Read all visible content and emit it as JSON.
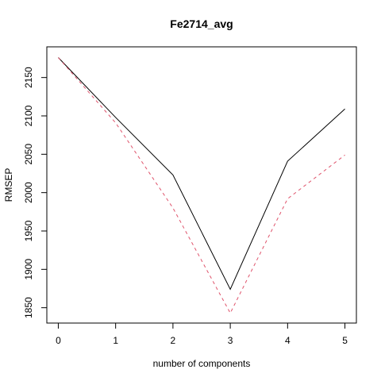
{
  "chart_data": {
    "type": "line",
    "title": "Fe2714_avg",
    "xlabel": "number of components",
    "ylabel": "RMSEP",
    "x": [
      0,
      1,
      2,
      3,
      4,
      5
    ],
    "xlim": [
      -0.2,
      5.2
    ],
    "ylim": [
      1830,
      2190
    ],
    "xticks": [
      0,
      1,
      2,
      3,
      4,
      5
    ],
    "yticks": [
      1850,
      1900,
      1950,
      2000,
      2050,
      2100,
      2150
    ],
    "grid": false,
    "series": [
      {
        "values": [
          2176,
          2098,
          2023,
          1874,
          2041,
          2109
        ],
        "color": "#000000",
        "dash": "solid"
      },
      {
        "values": [
          2176,
          2091,
          1980,
          1843,
          1992,
          2049
        ],
        "color": "#DF536B",
        "dash": "dashed"
      }
    ]
  }
}
